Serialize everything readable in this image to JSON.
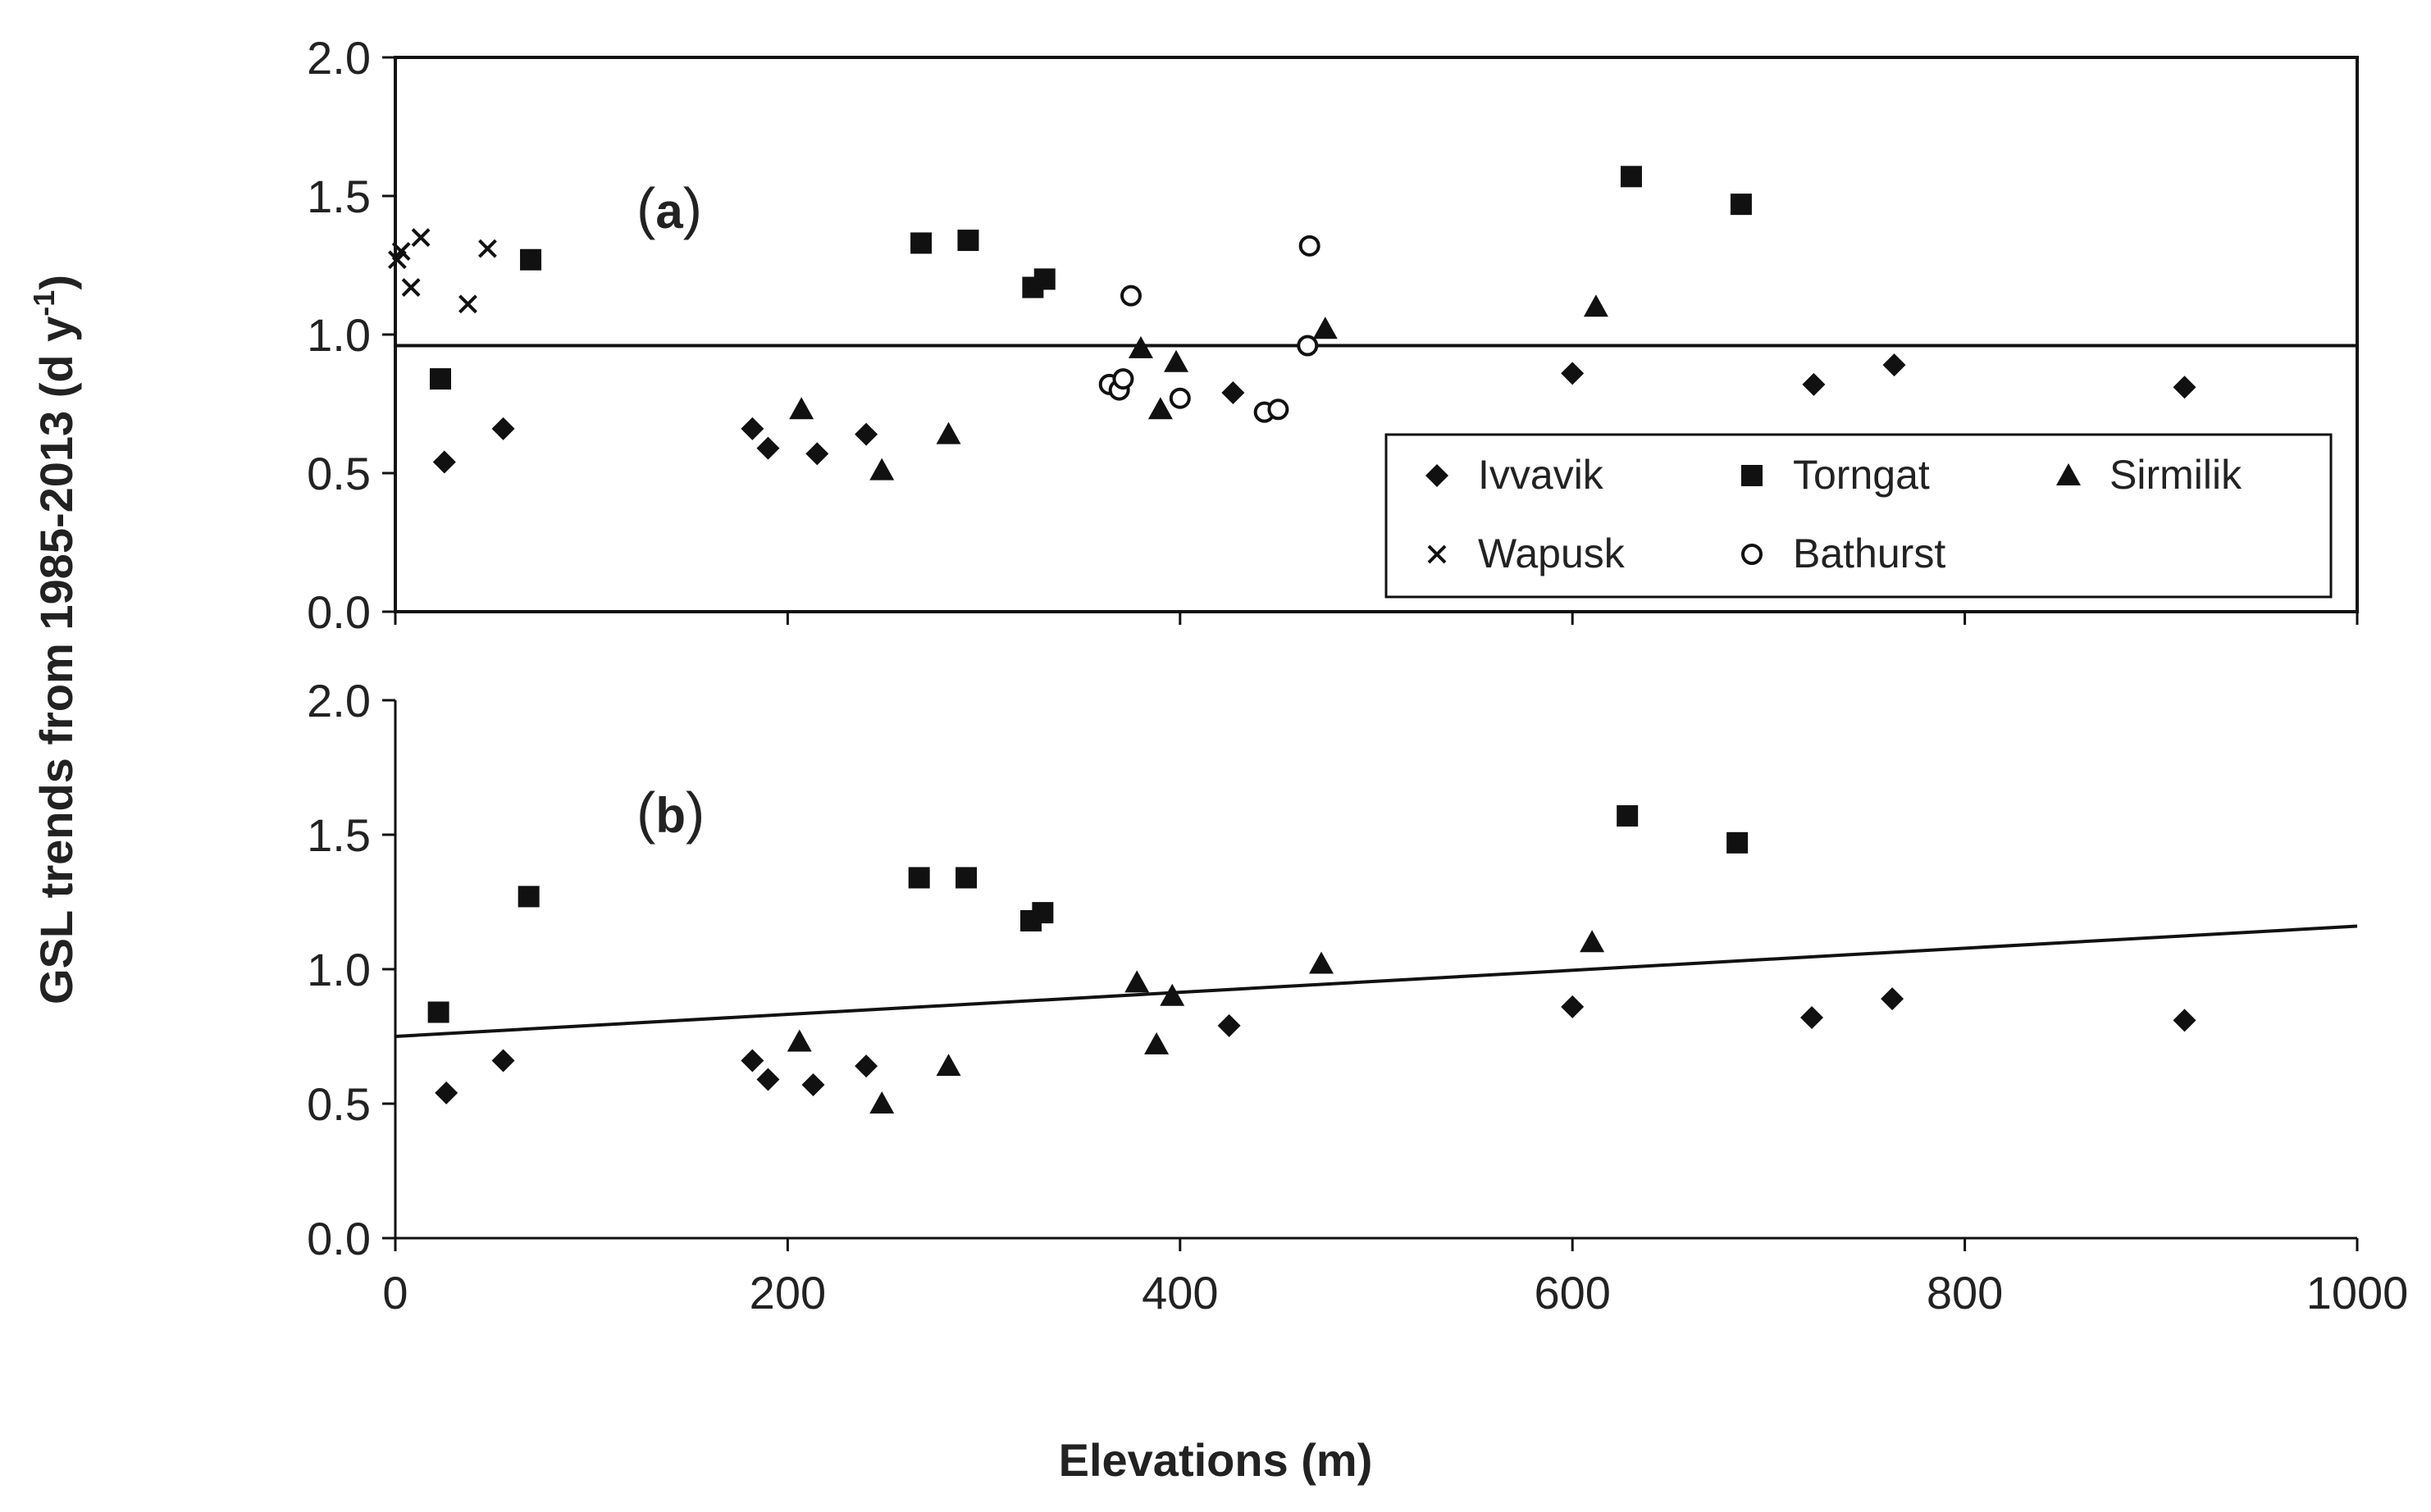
{
  "figure": {
    "ylabel_main": "GSL trends  from 1985-2013 (d y",
    "ylabel_sup": "-1",
    "ylabel_end": ")",
    "xlabel": "Elevations (m)"
  },
  "chart_data": [
    {
      "type": "scatter",
      "panel": "a",
      "panel_label_open": "(",
      "panel_label": "a",
      "panel_label_close": ")",
      "xlim": [
        0,
        1000
      ],
      "ylim": [
        0.0,
        2.0
      ],
      "xticks": [
        "0",
        "200",
        "400",
        "600",
        "800",
        "1000"
      ],
      "yticks": [
        "0.0",
        "0.5",
        "1.0",
        "1.5",
        "2.0"
      ],
      "grid": false,
      "reference_line": {
        "type": "horizontal",
        "y": 0.96
      },
      "legend": {
        "placement": "bottom-right",
        "entries": [
          {
            "label": "Ivvavik",
            "marker": "diamond-icon"
          },
          {
            "label": "Torngat",
            "marker": "square-icon"
          },
          {
            "label": "Sirmilik",
            "marker": "triangle-icon"
          },
          {
            "label": "Wapusk",
            "marker": "cross-icon"
          },
          {
            "label": "Bathurst",
            "marker": "circle-icon"
          }
        ]
      },
      "series": [
        {
          "name": "Ivvavik",
          "marker": "diamond",
          "x": [
            25,
            55,
            182,
            190,
            215,
            240,
            427,
            600,
            723,
            764,
            912
          ],
          "y": [
            0.54,
            0.66,
            0.66,
            0.59,
            0.57,
            0.64,
            0.79,
            0.86,
            0.82,
            0.89,
            0.81
          ]
        },
        {
          "name": "Torngat",
          "marker": "square",
          "x": [
            23,
            69,
            268,
            292,
            325,
            331,
            630,
            686
          ],
          "y": [
            0.84,
            1.27,
            1.33,
            1.34,
            1.17,
            1.2,
            1.57,
            1.47
          ]
        },
        {
          "name": "Sirmilik",
          "marker": "triangle",
          "x": [
            207,
            248,
            282,
            380,
            390,
            398,
            474,
            612
          ],
          "y": [
            0.73,
            0.51,
            0.64,
            0.95,
            0.73,
            0.9,
            1.02,
            1.1
          ]
        },
        {
          "name": "Wapusk",
          "marker": "cross",
          "x": [
            1,
            3,
            8,
            13,
            37,
            47
          ],
          "y": [
            1.27,
            1.3,
            1.17,
            1.35,
            1.11,
            1.31
          ]
        },
        {
          "name": "Bathurst",
          "marker": "circle",
          "x": [
            364,
            369,
            371,
            375,
            400,
            443,
            450,
            465,
            466
          ],
          "y": [
            0.82,
            0.8,
            0.84,
            1.14,
            0.77,
            0.72,
            0.73,
            0.96,
            1.32
          ]
        }
      ]
    },
    {
      "type": "scatter",
      "panel": "b",
      "panel_label_open": "(",
      "panel_label": "b",
      "panel_label_close": ")",
      "xlim": [
        0,
        1000
      ],
      "ylim": [
        0.0,
        2.0
      ],
      "xticks": [
        "0",
        "200",
        "400",
        "600",
        "800",
        "1000"
      ],
      "yticks": [
        "0.0",
        "0.5",
        "1.0",
        "1.5",
        "2.0"
      ],
      "grid": false,
      "reference_line": {
        "type": "trend",
        "x": [
          0,
          1000
        ],
        "y": [
          0.75,
          1.16
        ]
      },
      "series": [
        {
          "name": "Ivvavik",
          "marker": "diamond",
          "x": [
            26,
            55,
            182,
            190,
            213,
            240,
            425,
            600,
            722,
            763,
            912
          ],
          "y": [
            0.54,
            0.66,
            0.66,
            0.59,
            0.57,
            0.64,
            0.79,
            0.86,
            0.82,
            0.89,
            0.81
          ]
        },
        {
          "name": "Torngat",
          "marker": "square",
          "x": [
            22,
            68,
            267,
            291,
            324,
            330,
            628,
            684
          ],
          "y": [
            0.84,
            1.27,
            1.34,
            1.34,
            1.18,
            1.21,
            1.57,
            1.47
          ]
        },
        {
          "name": "Sirmilik",
          "marker": "triangle",
          "x": [
            206,
            248,
            282,
            378,
            388,
            396,
            472,
            610
          ],
          "y": [
            0.73,
            0.5,
            0.64,
            0.95,
            0.72,
            0.9,
            1.02,
            1.1
          ]
        }
      ]
    }
  ]
}
